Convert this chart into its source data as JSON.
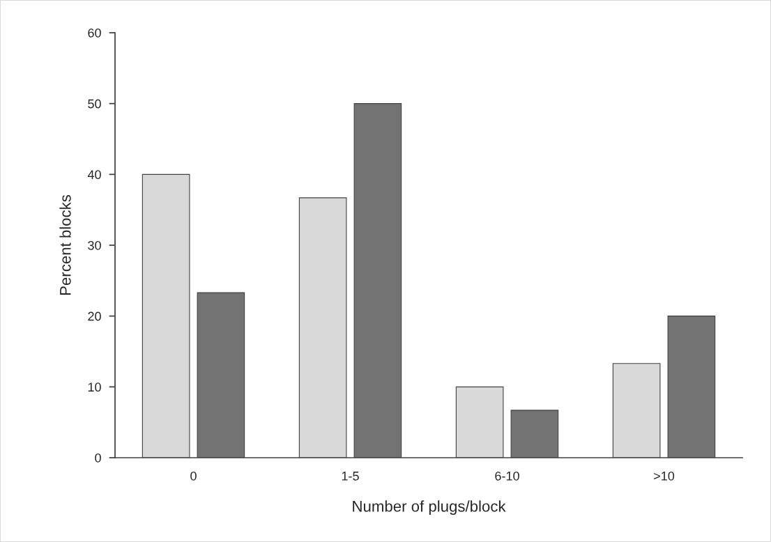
{
  "chart_data": {
    "type": "bar",
    "xlabel": "Number of plugs/block",
    "ylabel": "Percent blocks",
    "categories": [
      "0",
      "1-5",
      "6-10",
      ">10"
    ],
    "series": [
      {
        "color": "#d9d9d9",
        "values": [
          40,
          36.7,
          10,
          13.3
        ]
      },
      {
        "color": "#737373",
        "values": [
          23.3,
          50,
          6.7,
          20
        ]
      }
    ],
    "ylim": [
      0,
      60
    ],
    "yticks": [
      0,
      10,
      20,
      30,
      40,
      50,
      60
    ],
    "grid": false,
    "legend": false
  }
}
